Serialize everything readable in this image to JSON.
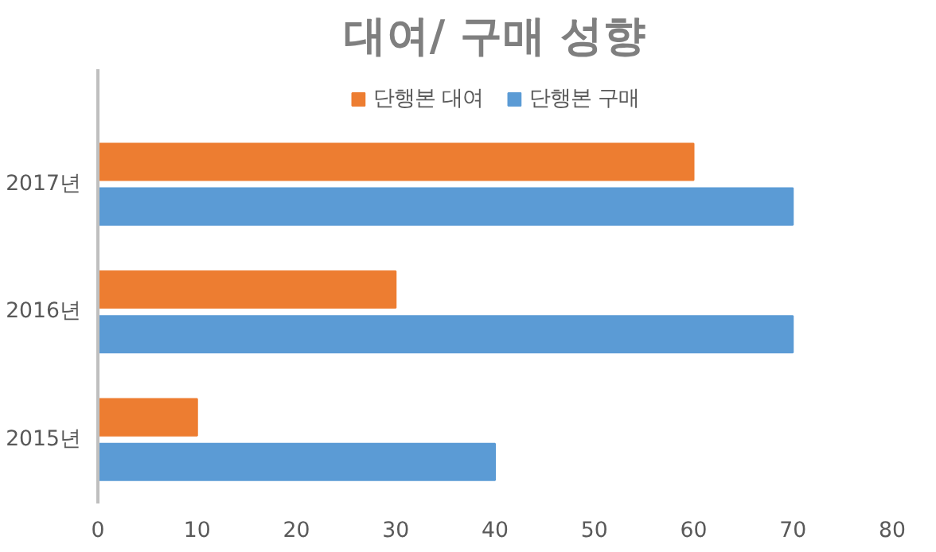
{
  "chart_data": {
    "type": "bar",
    "orientation": "horizontal",
    "title": "대여/ 구매 성향",
    "categories": [
      "2017년",
      "2016년",
      "2015년"
    ],
    "series": [
      {
        "name": "단행본 대여",
        "color": "#ed7d31",
        "values": [
          60,
          30,
          10
        ]
      },
      {
        "name": "단행본 구매",
        "color": "#5b9bd5",
        "values": [
          70,
          70,
          40
        ]
      }
    ],
    "xlim": [
      0,
      80
    ],
    "xticks": [
      0,
      10,
      20,
      30,
      40,
      50,
      60,
      70,
      80
    ],
    "grid": false,
    "legend": "top"
  }
}
